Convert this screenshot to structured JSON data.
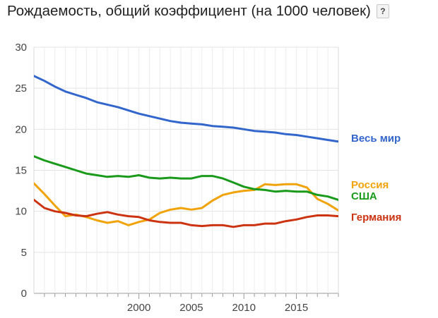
{
  "title": "Рождаемость, общий коэффициент (на 1000 человек)",
  "help_label": "?",
  "chart_data": {
    "type": "line",
    "title": "Рождаемость, общий коэффициент (на 1000 человек)",
    "xlabel": "",
    "ylabel": "",
    "xlim": [
      1990,
      2019
    ],
    "ylim": [
      0,
      30
    ],
    "yticks": [
      0,
      5,
      10,
      15,
      20,
      25,
      30
    ],
    "xticks": [
      2000,
      2005,
      2010,
      2015
    ],
    "grid": true,
    "legend": "right, inline labels at line ends",
    "x": [
      1990,
      1991,
      1992,
      1993,
      1994,
      1995,
      1996,
      1997,
      1998,
      1999,
      2000,
      2001,
      2002,
      2003,
      2004,
      2005,
      2006,
      2007,
      2008,
      2009,
      2010,
      2011,
      2012,
      2013,
      2014,
      2015,
      2016,
      2017,
      2018,
      2019
    ],
    "series": [
      {
        "name": "Весь мир",
        "color": "#3366cc",
        "values": [
          26.5,
          25.9,
          25.2,
          24.6,
          24.2,
          23.8,
          23.3,
          23.0,
          22.7,
          22.3,
          21.9,
          21.6,
          21.3,
          21.0,
          20.8,
          20.7,
          20.6,
          20.4,
          20.3,
          20.2,
          20.0,
          19.8,
          19.7,
          19.6,
          19.4,
          19.3,
          19.1,
          18.9,
          18.7,
          18.5
        ]
      },
      {
        "name": "Россия",
        "color": "#f0a30a",
        "values": [
          13.4,
          12.1,
          10.7,
          9.4,
          9.6,
          9.3,
          8.9,
          8.6,
          8.8,
          8.3,
          8.7,
          9.0,
          9.8,
          10.2,
          10.4,
          10.2,
          10.4,
          11.3,
          12.0,
          12.3,
          12.5,
          12.6,
          13.3,
          13.2,
          13.3,
          13.3,
          12.9,
          11.5,
          10.9,
          10.1
        ]
      },
      {
        "name": "США",
        "color": "#1a9a1a",
        "values": [
          16.7,
          16.2,
          15.8,
          15.4,
          15.0,
          14.6,
          14.4,
          14.2,
          14.3,
          14.2,
          14.4,
          14.1,
          14.0,
          14.1,
          14.0,
          14.0,
          14.3,
          14.3,
          14.0,
          13.5,
          13.0,
          12.7,
          12.6,
          12.4,
          12.5,
          12.4,
          12.4,
          12.0,
          11.8,
          11.4
        ]
      },
      {
        "name": "Германия",
        "color": "#cc3311",
        "values": [
          11.4,
          10.4,
          10.0,
          9.8,
          9.5,
          9.4,
          9.7,
          9.9,
          9.6,
          9.4,
          9.3,
          8.9,
          8.7,
          8.6,
          8.6,
          8.3,
          8.2,
          8.3,
          8.3,
          8.1,
          8.3,
          8.3,
          8.5,
          8.5,
          8.8,
          9.0,
          9.3,
          9.5,
          9.5,
          9.4
        ]
      }
    ]
  }
}
